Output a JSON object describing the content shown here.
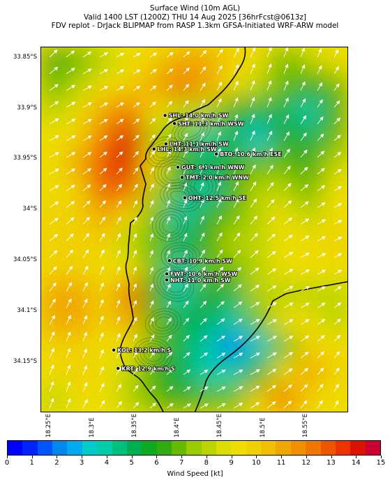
{
  "header": {
    "line1": "Surface Wind (10m AGL)",
    "line2": "Valid 1400 LST (1200Z) THU 14 Aug 2025 [36hrFcst@0613z]",
    "line3": "FDV replot - DrJack BLIPMAP from RASP 1.3km GFSA-Initiated WRF-ARW model"
  },
  "axes": {
    "lat_labels": [
      {
        "text": "33.85°S",
        "value": -33.85
      },
      {
        "text": "33.9°S",
        "value": -33.9
      },
      {
        "text": "33.95°S",
        "value": -33.95
      },
      {
        "text": "34°S",
        "value": -34.0
      },
      {
        "text": "34.05°S",
        "value": -34.05
      },
      {
        "text": "34.1°S",
        "value": -34.1
      },
      {
        "text": "34.15°S",
        "value": -34.15
      }
    ],
    "lon_labels": [
      {
        "text": "18.25°E",
        "value": 18.25
      },
      {
        "text": "18.3°E",
        "value": 18.3
      },
      {
        "text": "18.35°E",
        "value": 18.35
      },
      {
        "text": "18.4°E",
        "value": 18.4
      },
      {
        "text": "18.45°E",
        "value": 18.45
      },
      {
        "text": "18.5°E",
        "value": 18.5
      },
      {
        "text": "18.55°E",
        "value": 18.55
      }
    ],
    "lat_range": [
      -34.2,
      -33.84
    ],
    "lon_range": [
      18.24,
      18.6
    ]
  },
  "stations": [
    {
      "code": "SHL",
      "text": "SHL: 14.0 km/h SW",
      "lon": 18.385,
      "lat": -33.907
    },
    {
      "code": "SHT",
      "text": "SHT: 11.3 km/h WSW",
      "lon": 18.396,
      "lat": -33.915
    },
    {
      "code": "LHT",
      "text": "LHT: 11.1 km/h SW",
      "lon": 18.386,
      "lat": -33.935
    },
    {
      "code": "LHL",
      "text": "LHL: 14.3 km/h SW",
      "lon": 18.372,
      "lat": -33.94
    },
    {
      "code": "BTO",
      "text": "BTO: 10.6 km/h ESE",
      "lon": 18.445,
      "lat": -33.945
    },
    {
      "code": "GUT",
      "text": "GUT: 6.1 km/h WNW",
      "lon": 18.4,
      "lat": -33.958
    },
    {
      "code": "TMT",
      "text": "TMT: 2.0 km/h WNW",
      "lon": 18.405,
      "lat": -33.968
    },
    {
      "code": "OHT",
      "text": "OHT: 12.5 km/h SE",
      "lon": 18.408,
      "lat": -33.988
    },
    {
      "code": "CBT",
      "text": "CBT: 10.9 km/h SW",
      "lon": 18.39,
      "lat": -34.05
    },
    {
      "code": "FWT",
      "text": "FWT: 10.6 km/h WSW",
      "lon": 18.387,
      "lat": -34.063
    },
    {
      "code": "NHT",
      "text": "NHT: 11.0 km/h SW",
      "lon": 18.387,
      "lat": -34.069
    },
    {
      "code": "KOL",
      "text": "KOL: 13.2 km/h S",
      "lon": 18.325,
      "lat": -34.138
    },
    {
      "code": "KRT",
      "text": "KRT: 12.9 km/h S",
      "lon": 18.33,
      "lat": -34.156
    }
  ],
  "wind_field": {
    "grid": {
      "cols": 12,
      "rows": 14
    },
    "speed_kt": [
      [
        6,
        7,
        8,
        9,
        10,
        11,
        11,
        10,
        9,
        7,
        8,
        9
      ],
      [
        7,
        8,
        9,
        10,
        11,
        12,
        11,
        9,
        8,
        7,
        6,
        7
      ],
      [
        8,
        9,
        11,
        12,
        9,
        8,
        8,
        6,
        5,
        5,
        4,
        6
      ],
      [
        9,
        10,
        12,
        14,
        8,
        7,
        4,
        5,
        3,
        6,
        5,
        7
      ],
      [
        9,
        11,
        13,
        14,
        9,
        6,
        5,
        6,
        7,
        7,
        6,
        8
      ],
      [
        9,
        10,
        13,
        12,
        8,
        5,
        4,
        6,
        8,
        8,
        7,
        9
      ],
      [
        10,
        10,
        11,
        9,
        7,
        4,
        6,
        7,
        8,
        9,
        8,
        9
      ],
      [
        10,
        10,
        10,
        8,
        7,
        5,
        6,
        8,
        8,
        9,
        9,
        10
      ],
      [
        10,
        10,
        9,
        9,
        7,
        4,
        7,
        7,
        8,
        9,
        9,
        9
      ],
      [
        11,
        11,
        10,
        12,
        6,
        4,
        6,
        5,
        8,
        8,
        8,
        8
      ],
      [
        11,
        11,
        10,
        11,
        7,
        5,
        5,
        4,
        7,
        9,
        9,
        8
      ],
      [
        10,
        10,
        9,
        9,
        7,
        5,
        4,
        2,
        3,
        7,
        10,
        9
      ],
      [
        9,
        10,
        9,
        8,
        6,
        5,
        4,
        4,
        6,
        9,
        11,
        10
      ],
      [
        8,
        9,
        9,
        8,
        7,
        6,
        7,
        7,
        10,
        12,
        10,
        9
      ]
    ]
  },
  "colorbar": {
    "title": "Wind Speed [kt]",
    "ticks": [
      "0",
      "1",
      "2",
      "3",
      "4",
      "5",
      "6",
      "7",
      "8",
      "9",
      "10",
      "11",
      "12",
      "13",
      "14",
      "15"
    ],
    "min": 0,
    "max": 15,
    "colors": [
      "#0000ff",
      "#0022ff",
      "#0055ff",
      "#0088ee",
      "#00aaee",
      "#00cccc",
      "#00ccaa",
      "#00c080",
      "#00b050",
      "#10aa20",
      "#33aa10",
      "#66bb00",
      "#99cc00",
      "#bbd400",
      "#dddd00",
      "#eedd00",
      "#f0d000",
      "#f0c000",
      "#f0a800",
      "#f09000",
      "#f07800",
      "#ee5500",
      "#ee3300",
      "#dd1100",
      "#cc0033"
    ]
  }
}
